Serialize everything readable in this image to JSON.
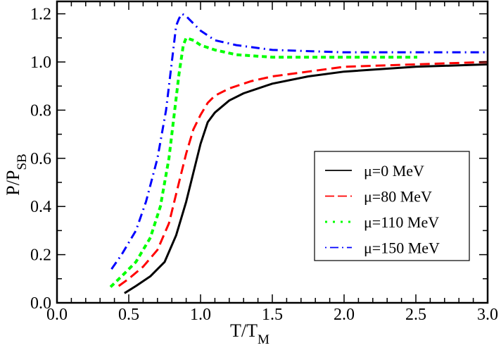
{
  "chart_data": {
    "type": "line",
    "title": "",
    "xlabel": "T/T_M",
    "xlabel_main": "T/T",
    "xlabel_sub": "M",
    "ylabel": "P/P_SB",
    "ylabel_main": "P/P",
    "ylabel_sub": "SB",
    "xlim": [
      0.0,
      3.0
    ],
    "ylim": [
      0.0,
      1.25
    ],
    "xticks": [
      "0.0",
      "0.5",
      "1.0",
      "1.5",
      "2.0",
      "2.5",
      "3.0"
    ],
    "yticks": [
      "0.0",
      "0.2",
      "0.4",
      "0.6",
      "0.8",
      "1.0",
      "1.2"
    ],
    "grid": false,
    "legend_position": "center-right",
    "series": [
      {
        "name": "μ=0 MeV",
        "color": "#000000",
        "style": "solid",
        "x": [
          0.47,
          0.55,
          0.65,
          0.75,
          0.83,
          0.9,
          0.95,
          1.0,
          1.05,
          1.1,
          1.2,
          1.3,
          1.5,
          1.75,
          2.0,
          2.5,
          3.0
        ],
        "y": [
          0.04,
          0.07,
          0.11,
          0.17,
          0.28,
          0.42,
          0.54,
          0.66,
          0.75,
          0.79,
          0.84,
          0.87,
          0.91,
          0.94,
          0.96,
          0.98,
          0.99
        ]
      },
      {
        "name": "μ=80 MeV",
        "color": "#ff0000",
        "style": "dashed",
        "x": [
          0.43,
          0.5,
          0.6,
          0.7,
          0.78,
          0.85,
          0.9,
          0.95,
          1.0,
          1.05,
          1.1,
          1.2,
          1.35,
          1.5,
          1.75,
          2.0,
          2.5,
          3.0
        ],
        "y": [
          0.07,
          0.1,
          0.15,
          0.22,
          0.33,
          0.5,
          0.62,
          0.72,
          0.78,
          0.83,
          0.86,
          0.89,
          0.92,
          0.94,
          0.96,
          0.98,
          0.99,
          1.0
        ]
      },
      {
        "name": "μ=110 MeV",
        "color": "#00ff00",
        "style": "dotted",
        "x": [
          0.38,
          0.45,
          0.55,
          0.65,
          0.72,
          0.78,
          0.82,
          0.85,
          0.88,
          0.9,
          0.95,
          1.0,
          1.1,
          1.25,
          1.5,
          2.0,
          2.5
        ],
        "y": [
          0.07,
          0.11,
          0.17,
          0.27,
          0.4,
          0.6,
          0.8,
          0.95,
          1.07,
          1.1,
          1.09,
          1.07,
          1.05,
          1.03,
          1.02,
          1.02,
          1.02
        ]
      },
      {
        "name": "μ=150 MeV",
        "color": "#0000ff",
        "style": "dashdot",
        "x": [
          0.38,
          0.45,
          0.55,
          0.62,
          0.7,
          0.76,
          0.8,
          0.83,
          0.85,
          0.87,
          0.9,
          0.95,
          1.0,
          1.1,
          1.25,
          1.5,
          2.0,
          2.5,
          3.0
        ],
        "y": [
          0.14,
          0.2,
          0.3,
          0.42,
          0.6,
          0.8,
          1.0,
          1.15,
          1.18,
          1.2,
          1.19,
          1.16,
          1.13,
          1.09,
          1.07,
          1.05,
          1.04,
          1.04,
          1.04
        ]
      }
    ]
  }
}
